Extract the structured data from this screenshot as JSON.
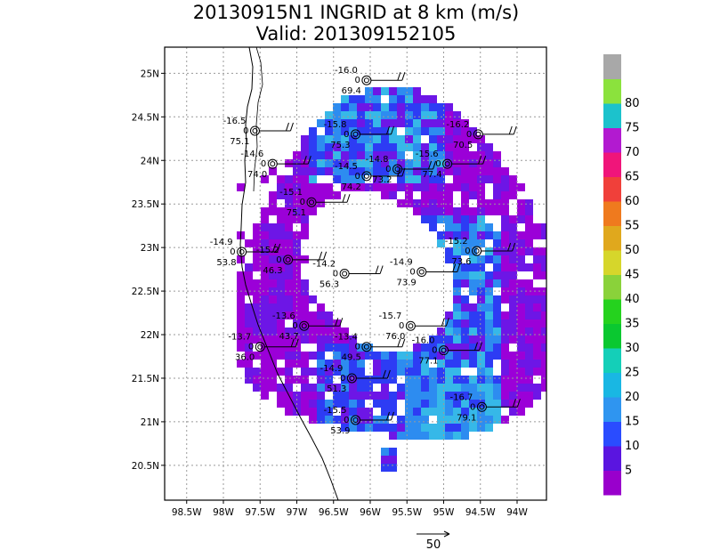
{
  "title": {
    "line1": "20130915N1 INGRID at 8 km (m/s)",
    "line2": "Valid: 201309152105"
  },
  "chart_data": {
    "type": "heatmap",
    "title": "20130915N1 INGRID at 8 km (m/s)",
    "subtitle": "Valid: 201309152105",
    "xlim": [
      -98.8,
      -93.6
    ],
    "ylim": [
      20.1,
      25.3
    ],
    "x_ticks": [
      {
        "value": -98.5,
        "label": "98.5W"
      },
      {
        "value": -98.0,
        "label": "98W"
      },
      {
        "value": -97.5,
        "label": "97.5W"
      },
      {
        "value": -97.0,
        "label": "97W"
      },
      {
        "value": -96.5,
        "label": "96.5W"
      },
      {
        "value": -96.0,
        "label": "96W"
      },
      {
        "value": -95.5,
        "label": "95.5W"
      },
      {
        "value": -95.0,
        "label": "95W"
      },
      {
        "value": -94.5,
        "label": "94.5W"
      },
      {
        "value": -94.0,
        "label": "94W"
      }
    ],
    "y_ticks": [
      {
        "value": 20.5,
        "label": "20.5N"
      },
      {
        "value": 21.0,
        "label": "21N"
      },
      {
        "value": 21.5,
        "label": "21.5N"
      },
      {
        "value": 22.0,
        "label": "22N"
      },
      {
        "value": 22.5,
        "label": "22.5N"
      },
      {
        "value": 23.0,
        "label": "23N"
      },
      {
        "value": 23.5,
        "label": "23.5N"
      },
      {
        "value": 24.0,
        "label": "24N"
      },
      {
        "value": 24.5,
        "label": "24.5N"
      },
      {
        "value": 25.0,
        "label": "25N"
      }
    ],
    "grid": true,
    "colorbar": {
      "label_values": [
        "5",
        "10",
        "15",
        "20",
        "25",
        "30",
        "35",
        "40",
        "45",
        "50",
        "55",
        "60",
        "65",
        "70",
        "75",
        "80"
      ],
      "colors": [
        "#9900cc",
        "#5a15e0",
        "#2a4cff",
        "#2f95f0",
        "#19b7e3",
        "#14cfb8",
        "#0ac830",
        "#25d21e",
        "#8ad23a",
        "#d6d62b",
        "#e0a81d",
        "#ef7a1e",
        "#f0403a",
        "#f0157a",
        "#b21ad0",
        "#1cc2cc",
        "#8be23d",
        "#a8a8a8"
      ],
      "placement": "right"
    },
    "reference_vector": {
      "label": "50"
    },
    "stations": [
      {
        "lon": -96.05,
        "lat": 24.92,
        "top": "-16.0",
        "mid": "0",
        "bottom": "69.4"
      },
      {
        "lon": -97.57,
        "lat": 24.34,
        "top": "-16.5",
        "mid": "0",
        "bottom": "75.1"
      },
      {
        "lon": -96.2,
        "lat": 24.3,
        "top": "-15.8",
        "mid": "0",
        "bottom": "75.3"
      },
      {
        "lon": -94.53,
        "lat": 24.3,
        "top": "-16.2",
        "mid": "0",
        "bottom": "70.5"
      },
      {
        "lon": -97.33,
        "lat": 23.96,
        "top": "-14.6",
        "mid": "0",
        "bottom": "74.0"
      },
      {
        "lon": -94.95,
        "lat": 23.96,
        "top": "-15.6",
        "mid": "0",
        "bottom": "77.4"
      },
      {
        "lon": -95.63,
        "lat": 23.9,
        "top": "-14.8",
        "mid": "0",
        "bottom": "73.2"
      },
      {
        "lon": -96.05,
        "lat": 23.82,
        "top": "-14.5",
        "mid": "0",
        "bottom": "74.2"
      },
      {
        "lon": -96.8,
        "lat": 23.52,
        "top": "-15.1",
        "mid": "0",
        "bottom": "75.1"
      },
      {
        "lon": -97.75,
        "lat": 22.95,
        "top": "-14.9",
        "mid": "0",
        "bottom": "53.8"
      },
      {
        "lon": -97.12,
        "lat": 22.86,
        "top": "-15.2",
        "mid": "0",
        "bottom": "46.3"
      },
      {
        "lon": -94.55,
        "lat": 22.96,
        "top": "-15.2",
        "mid": "0",
        "bottom": "73.6"
      },
      {
        "lon": -95.3,
        "lat": 22.72,
        "top": "-14.9",
        "mid": "0",
        "bottom": "73.9"
      },
      {
        "lon": -96.35,
        "lat": 22.7,
        "top": "-14.2",
        "mid": "0",
        "bottom": "56.3"
      },
      {
        "lon": -96.9,
        "lat": 22.1,
        "top": "-13.6",
        "mid": "0",
        "bottom": "43.7"
      },
      {
        "lon": -95.45,
        "lat": 22.1,
        "top": "-15.7",
        "mid": "0",
        "bottom": "76.0"
      },
      {
        "lon": -97.5,
        "lat": 21.86,
        "top": "-13.7",
        "mid": "0",
        "bottom": "36.0"
      },
      {
        "lon": -96.05,
        "lat": 21.86,
        "top": "-13.4",
        "mid": "0",
        "bottom": "49.5"
      },
      {
        "lon": -95.0,
        "lat": 21.82,
        "top": "-16.0",
        "mid": "0",
        "bottom": "77.1"
      },
      {
        "lon": -96.25,
        "lat": 21.5,
        "top": "-14.9",
        "mid": "0",
        "bottom": "51.3"
      },
      {
        "lon": -94.48,
        "lat": 21.17,
        "top": "-16.7",
        "mid": "0",
        "bottom": "79.1"
      },
      {
        "lon": -96.2,
        "lat": 21.02,
        "top": "-15.5",
        "mid": "0",
        "bottom": "53.9"
      }
    ]
  }
}
